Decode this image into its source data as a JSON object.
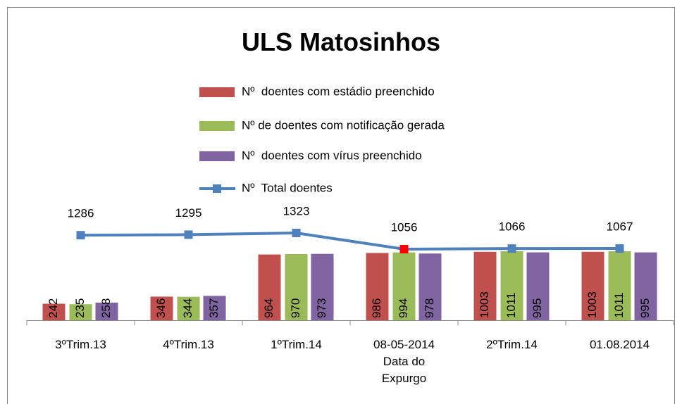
{
  "chart_data": {
    "type": "bar_line",
    "title": "ULS Matosinhos",
    "categories": [
      "3ºTrim.13",
      "4ºTrim.13",
      "1ºTrim.14",
      "08-05-2014\nData do\nExpurgo",
      "2ºTrim.14",
      "01.08.2014"
    ],
    "series": [
      {
        "name": "Nº  doentes com estádio preenchido",
        "color": "#c0504d",
        "values": [
          242,
          346,
          964,
          986,
          1003,
          1003
        ]
      },
      {
        "name": "Nº de doentes com notificação gerada",
        "color": "#9bbb59",
        "values": [
          235,
          344,
          970,
          994,
          1011,
          1011
        ]
      },
      {
        "name": "Nº  doentes com vírus preenchido",
        "color": "#8064a2",
        "values": [
          258,
          357,
          973,
          978,
          995,
          995
        ]
      },
      {
        "name": "Nº  Total doentes",
        "color": "#4f81bd",
        "type": "line",
        "axis": "y2",
        "values": [
          1286,
          1295,
          1323,
          1056,
          1066,
          1067
        ],
        "marker_colors": [
          "#4f81bd",
          "#4f81bd",
          "#4f81bd",
          "#ff0000",
          "#4f81bd",
          "#4f81bd"
        ]
      }
    ]
  }
}
